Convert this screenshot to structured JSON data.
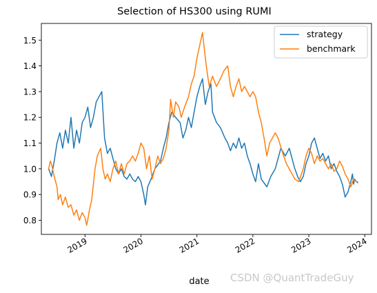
{
  "chart_data": {
    "type": "line",
    "title": "Selection of HS300 using RUMI",
    "xlabel": "date",
    "ylabel": "",
    "ylim": [
      0.745,
      1.565
    ],
    "xlim": [
      2018.22,
      2024.12
    ],
    "yticks": [
      "0.8",
      "0.9",
      "1.0",
      "1.1",
      "1.2",
      "1.3",
      "1.4",
      "1.5"
    ],
    "xticks": [
      "2019",
      "2020",
      "2021",
      "2022",
      "2023",
      "2024"
    ],
    "legend_position": "top-right",
    "grid": false,
    "series": [
      {
        "name": "strategy",
        "color": "#1f77b4",
        "points": [
          [
            2018.35,
            1.0
          ],
          [
            2018.4,
            0.97
          ],
          [
            2018.45,
            1.03
          ],
          [
            2018.5,
            1.1
          ],
          [
            2018.55,
            1.14
          ],
          [
            2018.6,
            1.08
          ],
          [
            2018.65,
            1.15
          ],
          [
            2018.7,
            1.1
          ],
          [
            2018.75,
            1.2
          ],
          [
            2018.8,
            1.08
          ],
          [
            2018.85,
            1.15
          ],
          [
            2018.9,
            1.1
          ],
          [
            2018.95,
            1.18
          ],
          [
            2019.0,
            1.2
          ],
          [
            2019.05,
            1.24
          ],
          [
            2019.1,
            1.16
          ],
          [
            2019.15,
            1.2
          ],
          [
            2019.2,
            1.26
          ],
          [
            2019.25,
            1.28
          ],
          [
            2019.3,
            1.3
          ],
          [
            2019.35,
            1.12
          ],
          [
            2019.4,
            1.06
          ],
          [
            2019.45,
            1.08
          ],
          [
            2019.5,
            1.04
          ],
          [
            2019.55,
            1.0
          ],
          [
            2019.6,
            0.98
          ],
          [
            2019.65,
            1.0
          ],
          [
            2019.7,
            0.97
          ],
          [
            2019.75,
            0.96
          ],
          [
            2019.8,
            0.98
          ],
          [
            2019.85,
            0.96
          ],
          [
            2019.9,
            0.95
          ],
          [
            2019.95,
            0.97
          ],
          [
            2020.0,
            0.95
          ],
          [
            2020.05,
            0.9
          ],
          [
            2020.08,
            0.86
          ],
          [
            2020.12,
            0.93
          ],
          [
            2020.18,
            0.96
          ],
          [
            2020.25,
            1.0
          ],
          [
            2020.35,
            1.03
          ],
          [
            2020.4,
            1.08
          ],
          [
            2020.45,
            1.12
          ],
          [
            2020.5,
            1.18
          ],
          [
            2020.55,
            1.22
          ],
          [
            2020.62,
            1.2
          ],
          [
            2020.7,
            1.18
          ],
          [
            2020.75,
            1.12
          ],
          [
            2020.8,
            1.15
          ],
          [
            2020.85,
            1.2
          ],
          [
            2020.9,
            1.16
          ],
          [
            2020.95,
            1.22
          ],
          [
            2021.0,
            1.28
          ],
          [
            2021.05,
            1.32
          ],
          [
            2021.1,
            1.35
          ],
          [
            2021.15,
            1.25
          ],
          [
            2021.2,
            1.3
          ],
          [
            2021.25,
            1.33
          ],
          [
            2021.28,
            1.22
          ],
          [
            2021.35,
            1.18
          ],
          [
            2021.42,
            1.16
          ],
          [
            2021.5,
            1.12
          ],
          [
            2021.55,
            1.1
          ],
          [
            2021.6,
            1.07
          ],
          [
            2021.65,
            1.1
          ],
          [
            2021.7,
            1.08
          ],
          [
            2021.75,
            1.12
          ],
          [
            2021.8,
            1.08
          ],
          [
            2021.85,
            1.1
          ],
          [
            2021.9,
            1.05
          ],
          [
            2021.95,
            1.02
          ],
          [
            2022.0,
            0.98
          ],
          [
            2022.05,
            0.95
          ],
          [
            2022.1,
            1.02
          ],
          [
            2022.15,
            0.96
          ],
          [
            2022.25,
            0.93
          ],
          [
            2022.32,
            0.97
          ],
          [
            2022.4,
            1.0
          ],
          [
            2022.5,
            1.08
          ],
          [
            2022.58,
            1.05
          ],
          [
            2022.65,
            1.08
          ],
          [
            2022.75,
            1.0
          ],
          [
            2022.8,
            0.97
          ],
          [
            2022.85,
            0.95
          ],
          [
            2022.9,
            0.97
          ],
          [
            2022.95,
            1.02
          ],
          [
            2023.0,
            1.05
          ],
          [
            2023.05,
            1.1
          ],
          [
            2023.1,
            1.12
          ],
          [
            2023.15,
            1.08
          ],
          [
            2023.2,
            1.04
          ],
          [
            2023.25,
            1.06
          ],
          [
            2023.3,
            1.03
          ],
          [
            2023.35,
            1.05
          ],
          [
            2023.4,
            1.0
          ],
          [
            2023.45,
            1.02
          ],
          [
            2023.5,
            0.99
          ],
          [
            2023.55,
            0.97
          ],
          [
            2023.6,
            0.94
          ],
          [
            2023.65,
            0.89
          ],
          [
            2023.7,
            0.91
          ],
          [
            2023.75,
            0.95
          ],
          [
            2023.78,
            0.98
          ],
          [
            2023.8,
            0.94
          ],
          [
            2023.82,
            0.96
          ],
          [
            2023.85,
            0.95
          ],
          [
            2023.88,
            0.945
          ]
        ]
      },
      {
        "name": "benchmark",
        "color": "#ff7f0e",
        "points": [
          [
            2018.35,
            1.0
          ],
          [
            2018.38,
            1.03
          ],
          [
            2018.4,
            1.02
          ],
          [
            2018.45,
            0.97
          ],
          [
            2018.5,
            0.93
          ],
          [
            2018.52,
            0.88
          ],
          [
            2018.56,
            0.9
          ],
          [
            2018.6,
            0.86
          ],
          [
            2018.65,
            0.89
          ],
          [
            2018.7,
            0.85
          ],
          [
            2018.75,
            0.86
          ],
          [
            2018.8,
            0.82
          ],
          [
            2018.85,
            0.84
          ],
          [
            2018.9,
            0.8
          ],
          [
            2018.95,
            0.83
          ],
          [
            2019.0,
            0.81
          ],
          [
            2019.03,
            0.78
          ],
          [
            2019.08,
            0.84
          ],
          [
            2019.12,
            0.88
          ],
          [
            2019.15,
            0.94
          ],
          [
            2019.18,
            1.0
          ],
          [
            2019.22,
            1.05
          ],
          [
            2019.28,
            1.08
          ],
          [
            2019.32,
            1.0
          ],
          [
            2019.36,
            0.96
          ],
          [
            2019.4,
            0.98
          ],
          [
            2019.45,
            0.95
          ],
          [
            2019.5,
            1.0
          ],
          [
            2019.55,
            1.03
          ],
          [
            2019.6,
            0.98
          ],
          [
            2019.65,
            1.02
          ],
          [
            2019.7,
            0.98
          ],
          [
            2019.75,
            1.02
          ],
          [
            2019.8,
            1.03
          ],
          [
            2019.85,
            1.05
          ],
          [
            2019.9,
            1.03
          ],
          [
            2019.95,
            1.06
          ],
          [
            2020.0,
            1.1
          ],
          [
            2020.05,
            1.08
          ],
          [
            2020.1,
            1.0
          ],
          [
            2020.15,
            1.05
          ],
          [
            2020.2,
            0.96
          ],
          [
            2020.25,
            1.0
          ],
          [
            2020.3,
            1.05
          ],
          [
            2020.35,
            1.02
          ],
          [
            2020.4,
            1.04
          ],
          [
            2020.45,
            1.08
          ],
          [
            2020.5,
            1.15
          ],
          [
            2020.53,
            1.27
          ],
          [
            2020.58,
            1.2
          ],
          [
            2020.62,
            1.26
          ],
          [
            2020.68,
            1.24
          ],
          [
            2020.72,
            1.2
          ],
          [
            2020.78,
            1.24
          ],
          [
            2020.85,
            1.28
          ],
          [
            2020.9,
            1.33
          ],
          [
            2020.95,
            1.36
          ],
          [
            2021.0,
            1.43
          ],
          [
            2021.05,
            1.48
          ],
          [
            2021.1,
            1.53
          ],
          [
            2021.14,
            1.45
          ],
          [
            2021.18,
            1.38
          ],
          [
            2021.22,
            1.32
          ],
          [
            2021.28,
            1.36
          ],
          [
            2021.35,
            1.32
          ],
          [
            2021.42,
            1.35
          ],
          [
            2021.48,
            1.38
          ],
          [
            2021.55,
            1.4
          ],
          [
            2021.6,
            1.32
          ],
          [
            2021.65,
            1.28
          ],
          [
            2021.7,
            1.32
          ],
          [
            2021.75,
            1.35
          ],
          [
            2021.8,
            1.3
          ],
          [
            2021.85,
            1.32
          ],
          [
            2021.9,
            1.3
          ],
          [
            2021.95,
            1.28
          ],
          [
            2022.0,
            1.3
          ],
          [
            2022.05,
            1.28
          ],
          [
            2022.1,
            1.22
          ],
          [
            2022.15,
            1.18
          ],
          [
            2022.2,
            1.12
          ],
          [
            2022.25,
            1.05
          ],
          [
            2022.3,
            1.1
          ],
          [
            2022.4,
            1.14
          ],
          [
            2022.45,
            1.12
          ],
          [
            2022.55,
            1.05
          ],
          [
            2022.6,
            1.02
          ],
          [
            2022.7,
            0.98
          ],
          [
            2022.75,
            0.96
          ],
          [
            2022.82,
            0.95
          ],
          [
            2022.9,
            1.0
          ],
          [
            2022.95,
            1.05
          ],
          [
            2023.0,
            1.08
          ],
          [
            2023.05,
            1.06
          ],
          [
            2023.1,
            1.02
          ],
          [
            2023.15,
            1.05
          ],
          [
            2023.2,
            1.03
          ],
          [
            2023.25,
            1.04
          ],
          [
            2023.3,
            1.02
          ],
          [
            2023.35,
            1.0
          ],
          [
            2023.4,
            1.02
          ],
          [
            2023.45,
            0.99
          ],
          [
            2023.5,
            1.0
          ],
          [
            2023.55,
            1.03
          ],
          [
            2023.6,
            1.01
          ],
          [
            2023.65,
            0.98
          ],
          [
            2023.7,
            0.96
          ],
          [
            2023.75,
            0.93
          ],
          [
            2023.8,
            0.96
          ],
          [
            2023.85,
            0.95
          ],
          [
            2023.88,
            0.95
          ]
        ]
      }
    ]
  },
  "watermark": "CSDN @QuantTradeGuy"
}
